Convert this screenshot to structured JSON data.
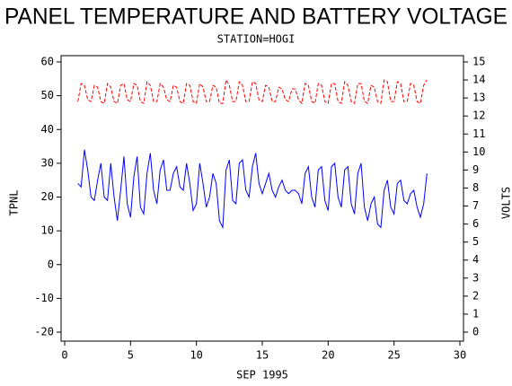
{
  "chart_data": {
    "type": "line",
    "title": "PANEL TEMPERATURE AND BATTERY VOLTAGE",
    "subtitle": "STATION=HOGI",
    "x_label": "SEP 1995",
    "y_label": "TPNL",
    "y2_label": "VOLTS",
    "xlim": [
      0,
      30
    ],
    "xticks": [
      0,
      5,
      10,
      15,
      20,
      25,
      30
    ],
    "ylim": [
      -20,
      60
    ],
    "yticks": [
      -20,
      -10,
      0,
      10,
      20,
      30,
      40,
      50,
      60
    ],
    "y2lim": [
      0,
      15
    ],
    "y2ticks": [
      0,
      1,
      2,
      3,
      4,
      5,
      6,
      7,
      8,
      9,
      10,
      11,
      12,
      13,
      14,
      15
    ],
    "x": [
      1,
      1.25,
      1.5,
      1.75,
      2,
      2.25,
      2.5,
      2.75,
      3,
      3.25,
      3.5,
      3.75,
      4,
      4.25,
      4.5,
      4.75,
      5,
      5.25,
      5.5,
      5.75,
      6,
      6.25,
      6.5,
      6.75,
      7,
      7.25,
      7.5,
      7.75,
      8,
      8.25,
      8.5,
      8.75,
      9,
      9.25,
      9.5,
      9.75,
      10,
      10.25,
      10.5,
      10.75,
      11,
      11.25,
      11.5,
      11.75,
      12,
      12.25,
      12.5,
      12.75,
      13,
      13.25,
      13.5,
      13.75,
      14,
      14.25,
      14.5,
      14.75,
      15,
      15.25,
      15.5,
      15.75,
      16,
      16.25,
      16.5,
      16.75,
      17,
      17.25,
      17.5,
      17.75,
      18,
      18.25,
      18.5,
      18.75,
      19,
      19.25,
      19.5,
      19.75,
      20,
      20.25,
      20.5,
      20.75,
      21,
      21.25,
      21.5,
      21.75,
      22,
      22.25,
      22.5,
      22.75,
      23,
      23.25,
      23.5,
      23.75,
      24,
      24.25,
      24.5,
      24.75,
      25,
      25.25,
      25.5,
      25.75,
      26,
      26.25,
      26.5,
      26.75,
      27,
      27.25,
      27.5
    ],
    "series": [
      {
        "color": "#0000ff",
        "axis": "y",
        "dashed": false,
        "values": [
          24,
          23,
          34,
          28,
          20,
          19,
          25,
          30,
          20,
          19,
          30,
          20,
          13,
          22,
          32,
          18,
          14,
          26,
          32,
          17,
          15,
          27,
          33,
          22,
          18,
          28,
          31,
          22,
          22,
          27,
          29,
          23,
          22,
          30,
          24,
          16,
          18,
          30,
          24,
          17,
          20,
          27,
          24,
          13,
          11,
          28,
          31,
          19,
          18,
          30,
          31,
          22,
          20,
          29,
          33,
          24,
          21,
          24,
          27,
          22,
          20,
          23,
          25,
          22,
          21,
          22,
          22,
          21,
          18,
          27,
          29,
          20,
          17,
          28,
          29,
          19,
          16,
          29,
          30,
          20,
          17,
          28,
          29,
          18,
          15,
          27,
          30,
          17,
          13,
          18,
          20,
          12,
          11,
          22,
          25,
          17,
          15,
          24,
          25,
          19,
          18,
          21,
          22,
          17,
          14,
          18,
          27
        ]
      },
      {
        "color": "#ff0000",
        "axis": "y2",
        "dashed": true,
        "values": [
          12.8,
          13.8,
          13.7,
          12.9,
          12.8,
          13.7,
          13.6,
          12.8,
          12.7,
          13.8,
          13.6,
          12.8,
          12.7,
          13.7,
          13.8,
          12.9,
          12.8,
          13.8,
          13.7,
          12.8,
          12.7,
          13.9,
          13.7,
          12.8,
          12.8,
          13.8,
          13.6,
          12.9,
          12.8,
          13.7,
          13.6,
          12.8,
          12.7,
          13.8,
          13.7,
          12.8,
          12.7,
          13.8,
          13.6,
          12.8,
          12.8,
          13.7,
          13.6,
          12.7,
          12.7,
          14.0,
          13.7,
          12.8,
          12.8,
          13.9,
          13.7,
          12.8,
          12.8,
          13.9,
          13.8,
          12.9,
          12.8,
          13.7,
          13.6,
          12.8,
          12.8,
          13.6,
          13.5,
          12.9,
          12.8,
          13.5,
          13.5,
          12.9,
          12.7,
          13.8,
          13.7,
          12.8,
          12.7,
          13.8,
          13.7,
          12.8,
          12.7,
          13.8,
          13.8,
          12.8,
          12.7,
          13.9,
          13.7,
          12.8,
          12.7,
          13.8,
          13.8,
          12.8,
          12.7,
          13.7,
          13.6,
          12.8,
          12.7,
          14.0,
          13.9,
          12.8,
          12.8,
          13.9,
          13.8,
          12.8,
          12.8,
          13.8,
          13.7,
          12.8,
          12.7,
          13.7,
          14.0
        ]
      }
    ]
  }
}
